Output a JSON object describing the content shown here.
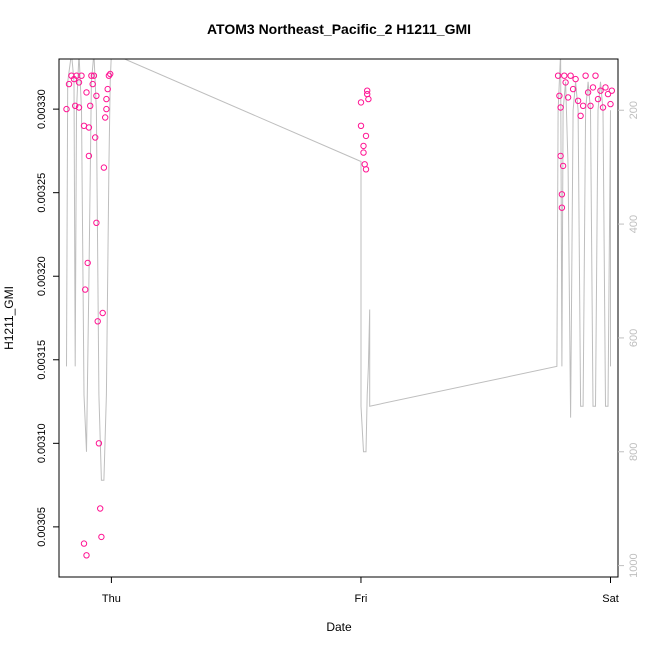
{
  "chart_data": {
    "type": "scatter",
    "title": "ATOM3 Northeast_Pacific_2 H1211_GMI",
    "xlabel": "Date",
    "ylabel": "H1211_GMI",
    "x_ticks": [
      "Thu",
      "Fri",
      "Sat"
    ],
    "y_ticks": [
      "0.00305",
      "0.00310",
      "0.00315",
      "0.00320",
      "0.00325",
      "0.00330"
    ],
    "y_range": [
      0.00302,
      0.00333
    ],
    "x_range_days": [
      -0.21,
      2.03
    ],
    "y2_ticks": [
      "200",
      "400",
      "600",
      "800",
      "1000"
    ],
    "y2_range_reversed": [
      1020,
      110
    ],
    "colors": {
      "points": "#ff1493",
      "altitude_line": "#bebebe",
      "axis": "#000000",
      "secondary_axis": "#bebebe"
    },
    "series": [
      {
        "kind": "points",
        "note": "x in days since Thu 00:00",
        "points": [
          [
            -0.18,
            0.0033
          ],
          [
            -0.17,
            0.003315
          ],
          [
            -0.16,
            0.00332
          ],
          [
            -0.15,
            0.003318
          ],
          [
            -0.145,
            0.003302
          ],
          [
            -0.14,
            0.00332
          ],
          [
            -0.13,
            0.003316
          ],
          [
            -0.13,
            0.003301
          ],
          [
            -0.12,
            0.00332
          ],
          [
            -0.11,
            0.00329
          ],
          [
            -0.11,
            0.00304
          ],
          [
            -0.105,
            0.003192
          ],
          [
            -0.1,
            0.00331
          ],
          [
            -0.1,
            0.003033
          ],
          [
            -0.095,
            0.003208
          ],
          [
            -0.09,
            0.003272
          ],
          [
            -0.09,
            0.003289
          ],
          [
            -0.085,
            0.003302
          ],
          [
            -0.08,
            0.00332
          ],
          [
            -0.075,
            0.003315
          ],
          [
            -0.07,
            0.00332
          ],
          [
            -0.065,
            0.003283
          ],
          [
            -0.06,
            0.003232
          ],
          [
            -0.06,
            0.003308
          ],
          [
            -0.055,
            0.003173
          ],
          [
            -0.05,
            0.0031
          ],
          [
            -0.045,
            0.003061
          ],
          [
            -0.04,
            0.003044
          ],
          [
            -0.035,
            0.003178
          ],
          [
            -0.03,
            0.003265
          ],
          [
            -0.025,
            0.003295
          ],
          [
            -0.02,
            0.0033
          ],
          [
            -0.02,
            0.003306
          ],
          [
            -0.015,
            0.003312
          ],
          [
            -0.01,
            0.00332
          ],
          [
            -0.005,
            0.003321
          ],
          [
            1.0,
            0.003304
          ],
          [
            1.0,
            0.00329
          ],
          [
            1.01,
            0.003278
          ],
          [
            1.01,
            0.003274
          ],
          [
            1.015,
            0.003267
          ],
          [
            1.02,
            0.003264
          ],
          [
            1.02,
            0.003284
          ],
          [
            1.025,
            0.003311
          ],
          [
            1.025,
            0.003309
          ],
          [
            1.03,
            0.003306
          ],
          [
            1.79,
            0.00332
          ],
          [
            1.795,
            0.003308
          ],
          [
            1.8,
            0.003301
          ],
          [
            1.8,
            0.003272
          ],
          [
            1.805,
            0.003249
          ],
          [
            1.805,
            0.003241
          ],
          [
            1.81,
            0.003266
          ],
          [
            1.815,
            0.00332
          ],
          [
            1.82,
            0.003316
          ],
          [
            1.83,
            0.003307
          ],
          [
            1.84,
            0.00332
          ],
          [
            1.85,
            0.003312
          ],
          [
            1.86,
            0.003318
          ],
          [
            1.87,
            0.003305
          ],
          [
            1.88,
            0.003296
          ],
          [
            1.89,
            0.003302
          ],
          [
            1.9,
            0.00332
          ],
          [
            1.91,
            0.00331
          ],
          [
            1.92,
            0.003302
          ],
          [
            1.93,
            0.003313
          ],
          [
            1.94,
            0.00332
          ],
          [
            1.95,
            0.003306
          ],
          [
            1.96,
            0.003311
          ],
          [
            1.97,
            0.003301
          ],
          [
            1.98,
            0.003313
          ],
          [
            1.99,
            0.003309
          ],
          [
            2.0,
            0.003303
          ],
          [
            2.005,
            0.003311
          ]
        ]
      },
      {
        "kind": "altitude-line",
        "note": "secondary axis (reversed), x in days since Thu 00:00",
        "points": [
          [
            -0.18,
            650
          ],
          [
            -0.175,
            150
          ],
          [
            -0.16,
            100
          ],
          [
            -0.15,
            150
          ],
          [
            -0.145,
            650
          ],
          [
            -0.14,
            200
          ],
          [
            -0.13,
            100
          ],
          [
            -0.12,
            200
          ],
          [
            -0.11,
            700
          ],
          [
            -0.1,
            800
          ],
          [
            -0.09,
            500
          ],
          [
            -0.08,
            150
          ],
          [
            -0.07,
            100
          ],
          [
            -0.06,
            200
          ],
          [
            -0.05,
            700
          ],
          [
            -0.04,
            850
          ],
          [
            -0.03,
            850
          ],
          [
            -0.02,
            700
          ],
          [
            -0.01,
            300
          ],
          [
            -0.005,
            150
          ],
          [
            0.0,
            100
          ],
          [
            1.0,
            290
          ],
          [
            1.0,
            720
          ],
          [
            1.01,
            800
          ],
          [
            1.02,
            800
          ],
          [
            1.025,
            700
          ],
          [
            1.03,
            650
          ],
          [
            1.035,
            550
          ],
          [
            1.035,
            720
          ],
          [
            1.785,
            650
          ],
          [
            1.79,
            200
          ],
          [
            1.8,
            100
          ],
          [
            1.805,
            650
          ],
          [
            1.81,
            200
          ],
          [
            1.82,
            150
          ],
          [
            1.83,
            300
          ],
          [
            1.84,
            740
          ],
          [
            1.85,
            200
          ],
          [
            1.86,
            150
          ],
          [
            1.87,
            200
          ],
          [
            1.88,
            720
          ],
          [
            1.89,
            720
          ],
          [
            1.9,
            200
          ],
          [
            1.91,
            150
          ],
          [
            1.92,
            200
          ],
          [
            1.93,
            720
          ],
          [
            1.94,
            720
          ],
          [
            1.95,
            200
          ],
          [
            1.96,
            150
          ],
          [
            1.97,
            200
          ],
          [
            1.98,
            720
          ],
          [
            1.99,
            720
          ],
          [
            2.0,
            200
          ],
          [
            2.0,
            650
          ]
        ]
      }
    ]
  }
}
